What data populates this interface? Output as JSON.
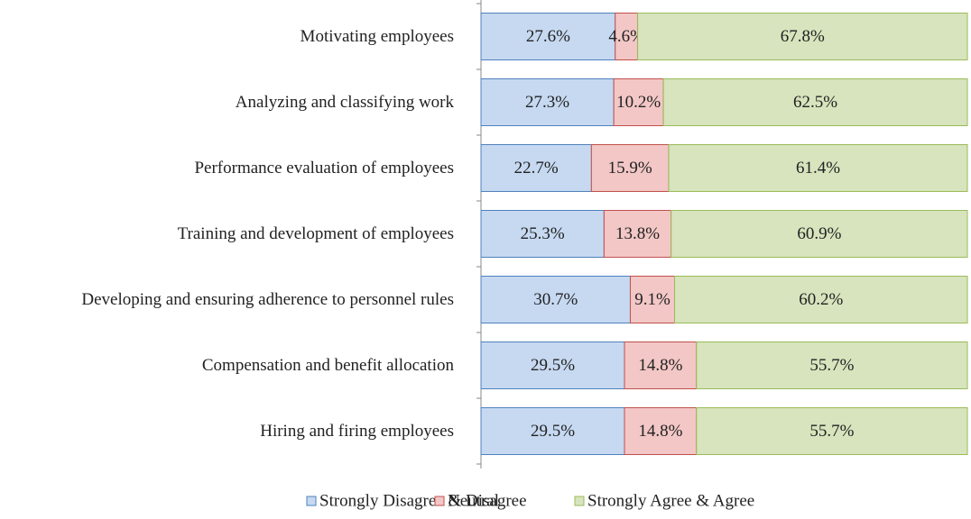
{
  "chart_data": {
    "type": "stacked_barh",
    "categories": [
      "Motivating employees",
      "Analyzing and classifying work",
      "Performance evaluation of employees",
      "Training and development of employees",
      "Developing and ensuring adherence to personnel rules",
      "Compensation and benefit allocation",
      "Hiring and firing employees"
    ],
    "series": [
      {
        "name": "Strongly Disagree & Disagree",
        "color": "#c6d9f1",
        "edge": "#4f81bd",
        "values": [
          27.6,
          27.3,
          22.7,
          25.3,
          30.7,
          29.5,
          29.5
        ],
        "value_labels": [
          "27.6%",
          "27.3%",
          "22.7%",
          "25.3%",
          "30.7%",
          "29.5%",
          "29.5%"
        ]
      },
      {
        "name": "Neutral",
        "color": "#f2c7c6",
        "edge": "#c0504d",
        "values": [
          4.6,
          10.2,
          15.9,
          13.8,
          9.1,
          14.8,
          14.8
        ],
        "value_labels": [
          "4.6%",
          "10.2%",
          "15.9%",
          "13.8%",
          "9.1%",
          "14.8%",
          "14.8%"
        ]
      },
      {
        "name": "Strongly Agree & Agree",
        "color": "#d7e4bd",
        "edge": "#9bbb59",
        "values": [
          67.8,
          62.5,
          61.4,
          60.9,
          60.2,
          55.7,
          55.7
        ],
        "value_labels": [
          "67.8%",
          "62.5%",
          "61.4%",
          "60.9%",
          "60.2%",
          "55.7%",
          "55.7%"
        ]
      }
    ],
    "xlim": [
      0,
      100
    ]
  }
}
